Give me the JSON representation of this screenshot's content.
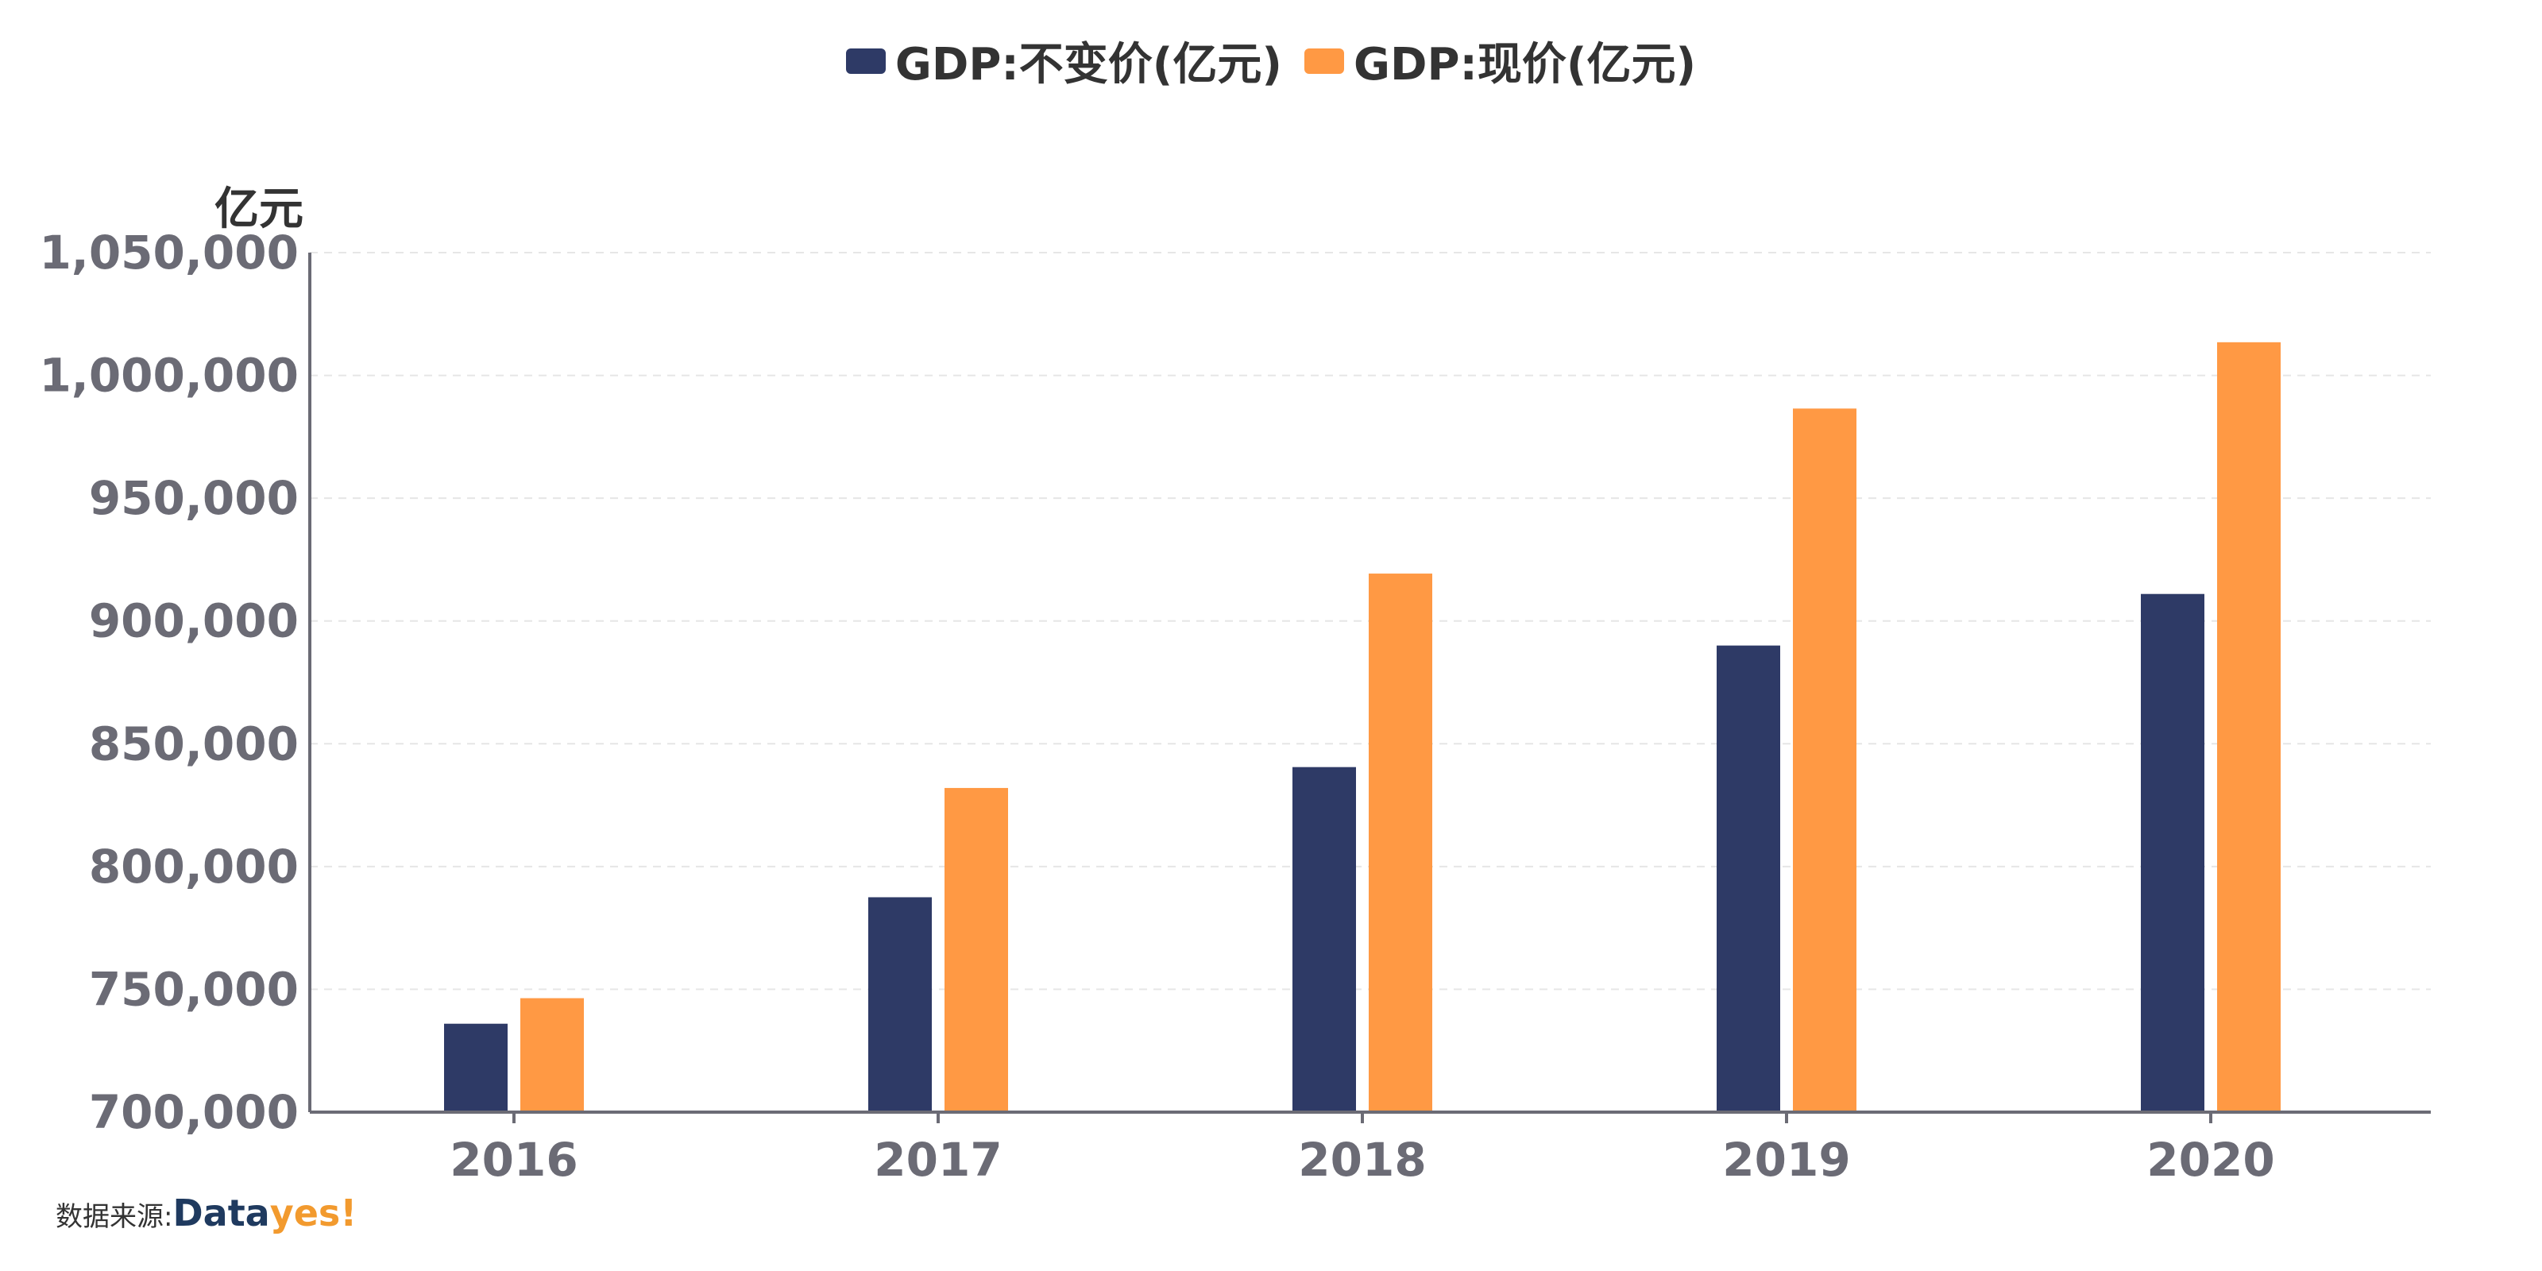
{
  "source": {
    "label": "数据来源:",
    "brand_a": "Data",
    "brand_b": "yes!"
  },
  "chart_data": {
    "type": "bar",
    "unit": "亿元",
    "categories": [
      "2016",
      "2017",
      "2018",
      "2019",
      "2020"
    ],
    "series": [
      {
        "name": "GDP:不变价(亿元)",
        "color": "#2e3a66",
        "values": [
          736000,
          787500,
          840500,
          890000,
          911000
        ]
      },
      {
        "name": "GDP:现价(亿元)",
        "color": "#ff9944",
        "values": [
          746400,
          832000,
          919300,
          986500,
          1013500
        ]
      }
    ],
    "ylim": [
      700000,
      1050000
    ],
    "yticks": [
      "700,000",
      "750,000",
      "800,000",
      "850,000",
      "900,000",
      "950,000",
      "1,000,000",
      "1,050,000"
    ],
    "ytick_values": [
      700000,
      750000,
      800000,
      850000,
      900000,
      950000,
      1000000,
      1050000
    ],
    "grid": true,
    "legend": "top-center"
  }
}
